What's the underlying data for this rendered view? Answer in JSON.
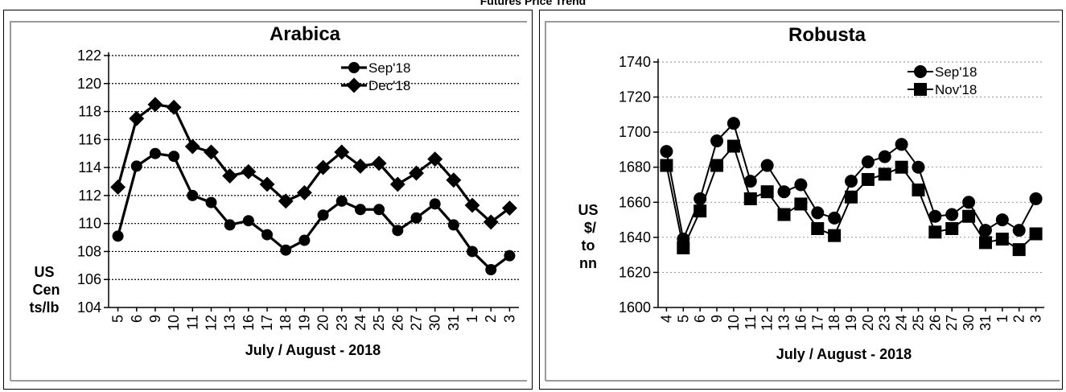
{
  "page_title": "Futures Price Trend",
  "chart_data": [
    {
      "type": "line",
      "title": "Arabica",
      "xlabel": "July / August - 2018",
      "ylabel": "US Cents/lb",
      "categories": [
        "5",
        "6",
        "9",
        "10",
        "11",
        "12",
        "13",
        "16",
        "17",
        "18",
        "19",
        "20",
        "23",
        "24",
        "25",
        "26",
        "27",
        "30",
        "31",
        "1",
        "2",
        "3"
      ],
      "ylim": [
        104,
        122
      ],
      "yticks": [
        104,
        106,
        108,
        110,
        112,
        114,
        116,
        118,
        120,
        122
      ],
      "grid": true,
      "legend_position": "top-right",
      "series": [
        {
          "name": "Sep'18",
          "marker": "circle",
          "values": [
            109.1,
            114.1,
            115.0,
            114.8,
            112.0,
            111.5,
            109.9,
            110.2,
            109.2,
            108.1,
            108.8,
            110.6,
            111.6,
            111.0,
            111.0,
            109.5,
            110.4,
            111.4,
            109.9,
            108.0,
            106.7,
            107.7
          ]
        },
        {
          "name": "Dec'18",
          "marker": "diamond",
          "values": [
            112.6,
            117.5,
            118.5,
            118.3,
            115.5,
            115.1,
            113.4,
            113.7,
            112.8,
            111.6,
            112.2,
            114.0,
            115.1,
            114.1,
            114.3,
            112.8,
            113.6,
            114.6,
            113.1,
            111.3,
            110.1,
            111.1
          ]
        }
      ]
    },
    {
      "type": "line",
      "title": "Robusta",
      "xlabel": "July / August - 2018",
      "ylabel": "US $/tonne",
      "categories": [
        "4",
        "5",
        "6",
        "9",
        "10",
        "11",
        "12",
        "13",
        "16",
        "17",
        "18",
        "19",
        "20",
        "23",
        "24",
        "25",
        "26",
        "27",
        "30",
        "31",
        "1",
        "2",
        "3"
      ],
      "ylim": [
        1600,
        1740
      ],
      "yticks": [
        1600,
        1620,
        1640,
        1660,
        1680,
        1700,
        1720,
        1740
      ],
      "grid": true,
      "legend_position": "top-right",
      "series": [
        {
          "name": "Sep'18",
          "marker": "circle",
          "values": [
            1689,
            1639,
            1662,
            1695,
            1705,
            1672,
            1681,
            1666,
            1670,
            1654,
            1651,
            1672,
            1683,
            1686,
            1693,
            1680,
            1652,
            1653,
            1660,
            1644,
            1650,
            1644,
            1662
          ]
        },
        {
          "name": "Nov'18",
          "marker": "square",
          "values": [
            1681,
            1634,
            1655,
            1681,
            1692,
            1662,
            1666,
            1653,
            1659,
            1645,
            1641,
            1663,
            1673,
            1676,
            1680,
            1667,
            1643,
            1645,
            1652,
            1637,
            1639,
            1633,
            1642
          ]
        }
      ]
    }
  ]
}
